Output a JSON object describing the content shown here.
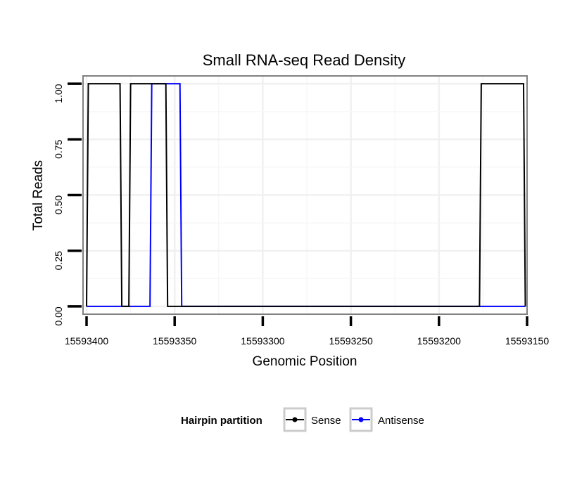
{
  "chart_data": {
    "type": "line",
    "title": "Small RNA-seq Read Density",
    "xlabel": "Genomic Position",
    "ylabel": "Total Reads",
    "x_reversed": true,
    "xlim": [
      15593402,
      15593150
    ],
    "ylim": [
      -0.035,
      1.035
    ],
    "x_ticks": [
      15593400,
      15593350,
      15593300,
      15593250,
      15593200,
      15593150
    ],
    "x_tick_labels": [
      "15593400",
      "15593350",
      "15593300",
      "15593250",
      "15593200",
      "15593150"
    ],
    "y_ticks": [
      0,
      0.25,
      0.5,
      0.75,
      1.0
    ],
    "y_tick_labels": [
      "0.00",
      "0.25",
      "0.50",
      "0.75",
      "1.00"
    ],
    "grid": true,
    "legend": {
      "title": "Hairpin partition",
      "position": "bottom",
      "entries": [
        {
          "label": "Sense",
          "color": "#000000"
        },
        {
          "label": "Antisense",
          "color": "#0000ff"
        }
      ]
    },
    "series": [
      {
        "name": "Sense",
        "color": "#000000",
        "x": [
          15593400,
          15593399,
          15593381,
          15593380,
          15593376,
          15593375,
          15593355,
          15593354,
          15593177,
          15593176,
          15593152,
          15593151
        ],
        "y": [
          0,
          1,
          1,
          0,
          0,
          1,
          1,
          0,
          0,
          1,
          1,
          0
        ]
      },
      {
        "name": "Antisense",
        "color": "#0000ff",
        "x": [
          15593400,
          15593364,
          15593363,
          15593347,
          15593346,
          15593151
        ],
        "y": [
          0,
          0,
          1,
          1,
          0,
          0
        ]
      }
    ]
  }
}
